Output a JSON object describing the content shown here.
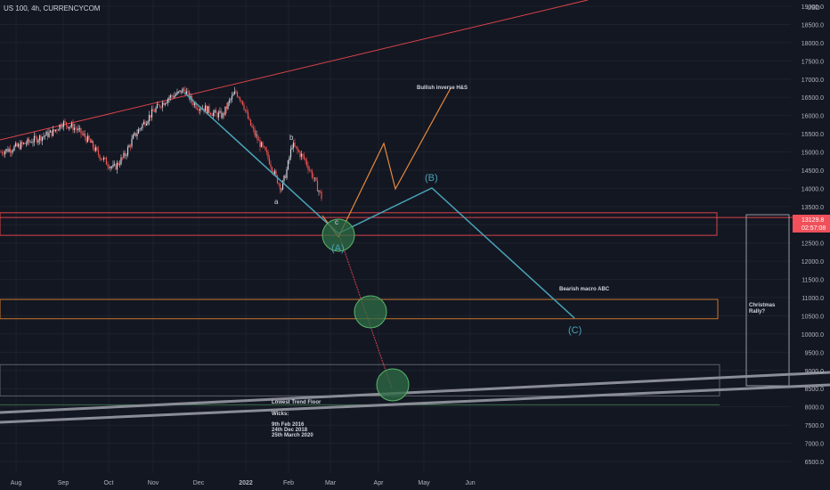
{
  "header": {
    "symbol": "US 100, 4h, CURRENCYCOM",
    "currency": "USD"
  },
  "colors": {
    "background": "#131722",
    "grid": "#1e222d",
    "axis_text": "#b2b5be",
    "up": "#d1d4dc",
    "down": "#ef5350",
    "wave": "#4aa3b8",
    "orange": "#e58a3c",
    "red_line": "#d9434a",
    "zone_red": "#d9434a",
    "zone_orange": "#c9772c",
    "zone_grey": "#5d606b",
    "floor": "#8a8d96",
    "circle_fill": "#2f6e46",
    "circle_stroke": "#59b66a",
    "price_badge": "#f0505a"
  },
  "chart_data": {
    "type": "candlestick",
    "price_axis": {
      "ticks": [
        "19000.0",
        "18500.0",
        "18000.0",
        "17500.0",
        "17000.0",
        "16500.0",
        "16000.0",
        "15500.0",
        "15000.0",
        "14500.0",
        "14000.0",
        "13500.0",
        "13000.0",
        "12500.0",
        "12000.0",
        "11500.0",
        "11000.0",
        "10500.0",
        "10000.0",
        "9500.0",
        "9000.0",
        "8500.0",
        "8000.0",
        "7500.0",
        "7000.0",
        "6500.0"
      ],
      "range": [
        6230,
        19350
      ]
    },
    "time_axis": {
      "labels": [
        "Aug",
        "Sep",
        "Oct",
        "Nov",
        "Dec",
        "2022",
        "Feb",
        "Mar",
        "Apr",
        "May",
        "Jun"
      ],
      "bold_label": "2022"
    },
    "current_price": "13129.8",
    "countdown": "02:57:08",
    "price_path": [
      [
        1,
        15000
      ],
      [
        20,
        15150
      ],
      [
        40,
        15350
      ],
      [
        60,
        15550
      ],
      [
        70,
        15800
      ],
      [
        85,
        15650
      ],
      [
        100,
        15300
      ],
      [
        110,
        14950
      ],
      [
        120,
        14700
      ],
      [
        128,
        14550
      ],
      [
        140,
        14900
      ],
      [
        150,
        15400
      ],
      [
        160,
        15750
      ],
      [
        170,
        16050
      ],
      [
        180,
        16300
      ],
      [
        190,
        16500
      ],
      [
        200,
        16600
      ],
      [
        207,
        16720
      ],
      [
        215,
        16400
      ],
      [
        222,
        16250
      ],
      [
        230,
        16200
      ],
      [
        240,
        16050
      ],
      [
        250,
        16000
      ],
      [
        258,
        16400
      ],
      [
        265,
        16650
      ],
      [
        272,
        16400
      ],
      [
        280,
        15800
      ],
      [
        290,
        15300
      ],
      [
        300,
        14900
      ],
      [
        310,
        14300
      ],
      [
        316,
        14000
      ],
      [
        322,
        14500
      ],
      [
        328,
        15200
      ],
      [
        335,
        15000
      ],
      [
        342,
        14800
      ],
      [
        350,
        14400
      ],
      [
        356,
        14050
      ],
      [
        362,
        13700
      ]
    ],
    "annotations": {
      "bullish_label": "Bullish inverse H&S",
      "bearish_label": "Bearish macro ABC",
      "floor_label": "Lowest Trend Floor",
      "wicks_title": "Wicks:",
      "wick_dates": [
        "9th Feb 2016",
        "24th Dec 2018",
        "25th March 2020"
      ],
      "christmas_label": "Christmas Rally?",
      "wave_A": "(A)",
      "wave_B": "(B)",
      "wave_C": "(C)",
      "minor_a": "a",
      "minor_b": "b",
      "minor_c": "c"
    },
    "levels": {
      "zone_red": [
        12710,
        13330
      ],
      "zone_orange": [
        10420,
        10950
      ],
      "zone_grey": [
        8300,
        9160
      ],
      "horizontal_line": 13150
    }
  }
}
